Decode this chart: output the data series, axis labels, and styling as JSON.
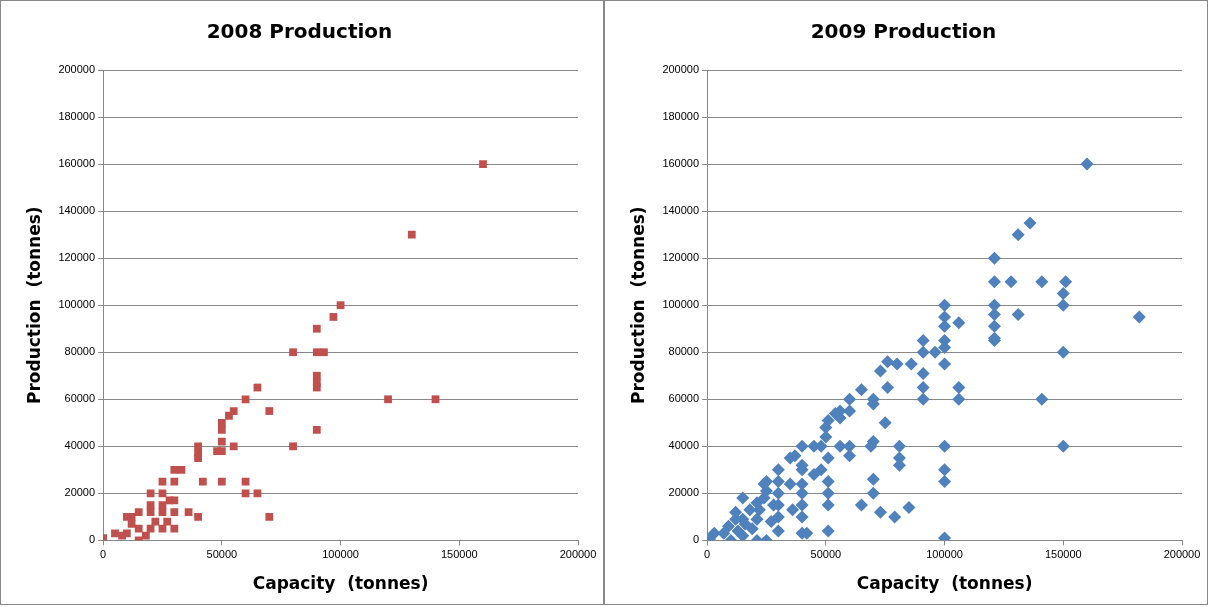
{
  "chart_data": [
    {
      "type": "scatter",
      "title": "2008 Production",
      "xlabel": "Capacity  (tonnes)",
      "ylabel": "Production  (tonnes)",
      "xlim": [
        0,
        200000
      ],
      "ylim": [
        0,
        200000
      ],
      "xticks": [
        0,
        50000,
        100000,
        150000,
        200000
      ],
      "yticks": [
        0,
        20000,
        40000,
        60000,
        80000,
        100000,
        120000,
        140000,
        160000,
        180000,
        200000
      ],
      "grid": "y",
      "legend": false,
      "marker": "square",
      "series": [
        {
          "color": "#c0504d",
          "x": [
            160000,
            130000,
            100000,
            97000,
            90000,
            80000,
            90000,
            93000,
            90000,
            90000,
            90000,
            65000,
            60000,
            120000,
            140000,
            70000,
            55000,
            53000,
            50000,
            50000,
            90000,
            50000,
            55000,
            80000,
            50000,
            48000,
            40000,
            40000,
            30000,
            33000,
            40000,
            60000,
            50000,
            42000,
            25000,
            30000,
            20000,
            25000,
            28000,
            30000,
            60000,
            65000,
            70000,
            40000,
            36000,
            15000,
            20000,
            25000,
            30000,
            10000,
            12000,
            15000,
            20000,
            25000,
            30000,
            10000,
            5000,
            8000,
            0,
            15000,
            18000,
            22000,
            27000,
            20000,
            25000,
            12000
          ],
          "values": [
            160000,
            130000,
            100000,
            95000,
            90000,
            80000,
            80000,
            80000,
            70000,
            67000,
            65000,
            65000,
            60000,
            60000,
            60000,
            55000,
            55000,
            53000,
            50000,
            47000,
            47000,
            42000,
            40000,
            40000,
            38000,
            38000,
            40000,
            35000,
            30000,
            30000,
            37000,
            25000,
            25000,
            25000,
            25000,
            25000,
            20000,
            20000,
            17000,
            17000,
            20000,
            20000,
            10000,
            10000,
            12000,
            12000,
            12000,
            12000,
            12000,
            10000,
            7000,
            5000,
            5000,
            5000,
            5000,
            3000,
            3000,
            2000,
            1000,
            0,
            2000,
            8000,
            8000,
            15000,
            15000,
            10000
          ]
        }
      ]
    },
    {
      "type": "scatter",
      "title": "2009 Production",
      "xlabel": "Capacity  (tonnes)",
      "ylabel": "Production  (tonnes)",
      "xlim": [
        0,
        200000
      ],
      "ylim": [
        0,
        200000
      ],
      "xticks": [
        0,
        50000,
        100000,
        150000,
        200000
      ],
      "yticks": [
        0,
        20000,
        40000,
        60000,
        80000,
        100000,
        120000,
        140000,
        160000,
        180000,
        200000
      ],
      "grid": "y",
      "legend": false,
      "marker": "diamond",
      "series": [
        {
          "color": "#4f81bd",
          "x": [
            160000,
            136000,
            131000,
            121000,
            121000,
            128000,
            141000,
            151000,
            150000,
            150000,
            150000,
            150000,
            141000,
            182000,
            131000,
            121000,
            121000,
            121000,
            121000,
            121000,
            100000,
            100000,
            100000,
            106000,
            100000,
            100000,
            96000,
            91000,
            91000,
            100000,
            91000,
            86000,
            80000,
            76000,
            73000,
            76000,
            65000,
            91000,
            106000,
            106000,
            91000,
            70000,
            70000,
            60000,
            60000,
            56000,
            54000,
            56000,
            51000,
            50000,
            50000,
            75000,
            70000,
            69000,
            81000,
            81000,
            81000,
            100000,
            100000,
            100000,
            100000,
            60000,
            60000,
            56000,
            48000,
            45000,
            51000,
            40000,
            37000,
            35000,
            40000,
            40000,
            30000,
            30000,
            35000,
            45000,
            48000,
            51000,
            51000,
            51000,
            51000,
            40000,
            40000,
            40000,
            40000,
            40000,
            42000,
            70000,
            70000,
            65000,
            73000,
            79000,
            85000,
            36000,
            30000,
            30000,
            30000,
            30000,
            25000,
            25000,
            25000,
            21000,
            21000,
            15000,
            15000,
            12000,
            9000,
            3000,
            1000,
            10000,
            15000,
            19000,
            22000,
            24000,
            18000,
            21000,
            13000,
            12000,
            7000,
            16000,
            27000,
            28000,
            24000
          ],
          "values": [
            160000,
            135000,
            130000,
            120000,
            110000,
            110000,
            110000,
            110000,
            105000,
            100000,
            80000,
            40000,
            60000,
            95000,
            96000,
            100000,
            96000,
            91000,
            86000,
            85000,
            100000,
            95000,
            91000,
            92500,
            85000,
            82000,
            80000,
            85000,
            80000,
            75000,
            71000,
            75000,
            75000,
            76000,
            72000,
            65000,
            64000,
            65000,
            65000,
            60000,
            60000,
            60000,
            58000,
            60000,
            55000,
            55000,
            54000,
            52000,
            51000,
            48000,
            44000,
            50000,
            42000,
            40000,
            40000,
            35000,
            32000,
            40000,
            30000,
            25000,
            1000,
            40000,
            36000,
            40000,
            40000,
            40000,
            35000,
            40000,
            36000,
            35000,
            32000,
            30000,
            30000,
            25000,
            24000,
            28000,
            30000,
            25000,
            20000,
            15000,
            4000,
            24000,
            20000,
            15000,
            10000,
            3000,
            3000,
            26000,
            20000,
            15000,
            12000,
            10000,
            14000,
            13000,
            20000,
            15000,
            10000,
            4000,
            25000,
            0,
            21000,
            16000,
            9000,
            18000,
            9000,
            12000,
            6000,
            3000,
            500,
            0,
            2000,
            5000,
            13000,
            24000,
            13000,
            0,
            4000,
            9000,
            3000,
            7000,
            8000,
            15000,
            18000
          ]
        }
      ]
    }
  ]
}
